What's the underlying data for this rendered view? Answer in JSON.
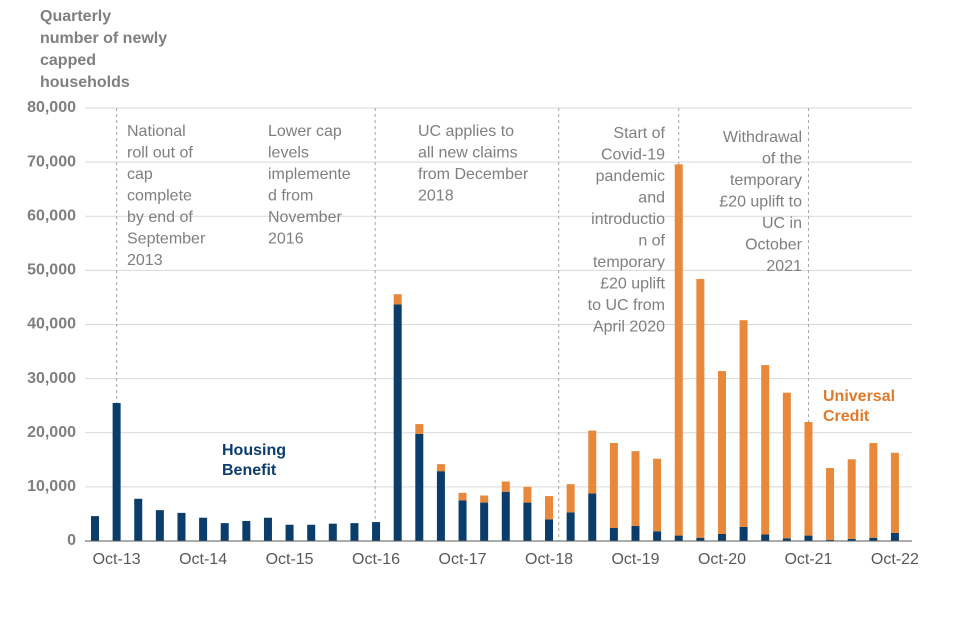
{
  "chart_data": {
    "type": "stacked-bar",
    "y_label": [
      "Quarterly",
      "number of newly",
      "capped",
      "households"
    ],
    "categories": [
      null,
      "Oct-13",
      null,
      null,
      null,
      "Oct-14",
      null,
      null,
      null,
      "Oct-15",
      null,
      null,
      null,
      "Oct-16",
      null,
      null,
      null,
      "Oct-17",
      null,
      null,
      null,
      "Oct-18",
      null,
      null,
      null,
      "Oct-19",
      null,
      null,
      null,
      "Oct-20",
      null,
      null,
      null,
      "Oct-21",
      null,
      null,
      null,
      "Oct-22"
    ],
    "series": [
      {
        "name": "Housing Benefit",
        "color": "#0b3d6b",
        "values": [
          4600,
          25500,
          7800,
          5700,
          5200,
          4300,
          3300,
          3700,
          4300,
          3000,
          3000,
          3200,
          3300,
          3500,
          43700,
          19800,
          12900,
          7500,
          7100,
          9100,
          7100,
          4000,
          5300,
          8800,
          2400,
          2800,
          1800,
          1000,
          600,
          1300,
          2600,
          1200,
          500,
          1000,
          200,
          400,
          600,
          1500
        ]
      },
      {
        "name": "Universal Credit",
        "color": "#e8883a",
        "values": [
          0,
          0,
          0,
          0,
          0,
          0,
          0,
          0,
          0,
          0,
          0,
          0,
          0,
          0,
          1900,
          1800,
          1300,
          1400,
          1300,
          1900,
          2900,
          4300,
          5200,
          11600,
          15700,
          13800,
          13400,
          68600,
          47800,
          30100,
          38200,
          31300,
          26900,
          21000,
          13300,
          14700,
          17500,
          14800
        ]
      }
    ],
    "ylim": [
      0,
      80000
    ],
    "yticks": [
      0,
      {
        "value": 10000,
        "label": "10,000"
      },
      {
        "value": 20000,
        "label": "20,000"
      },
      {
        "value": 30000,
        "label": "30,000"
      },
      {
        "value": 40000,
        "label": "40,000"
      },
      {
        "value": 50000,
        "label": "50,000"
      },
      {
        "value": 60000,
        "label": "60,000"
      },
      {
        "value": 70000,
        "label": "70,000"
      },
      {
        "value": 80000,
        "label": "80,000"
      }
    ],
    "grid": true,
    "annotations": [
      [
        "National",
        "roll out of",
        "cap",
        "complete",
        "by end of",
        "September",
        "2013"
      ],
      [
        "Lower cap",
        "levels",
        "implemente",
        "d from",
        "November",
        "2016"
      ],
      [
        "UC applies to",
        "all new claims",
        "from December",
        "2018"
      ],
      [
        "Start of",
        "Covid-19",
        "pandemic",
        "and",
        "introductio",
        "n of",
        "temporary",
        "£20 uplift",
        "to UC from",
        "April 2020"
      ],
      [
        "Withdrawal",
        "of the",
        "temporary",
        "£20 uplift to",
        "UC in",
        "October",
        "2021"
      ]
    ]
  }
}
